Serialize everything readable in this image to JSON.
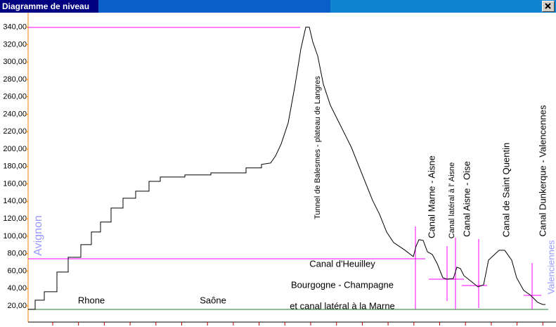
{
  "window": {
    "title": "Diagramme de niveau"
  },
  "chart_data": {
    "type": "line",
    "ylim": [
      1.4,
      355
    ],
    "xlim": [
      0,
      750
    ],
    "yticks": [
      {
        "value": 20,
        "label": "20,00"
      },
      {
        "value": 40,
        "label": "40,00"
      },
      {
        "value": 60,
        "label": "60,00"
      },
      {
        "value": 80,
        "label": "80,00"
      },
      {
        "value": 100,
        "label": "100,00"
      },
      {
        "value": 120,
        "label": "120,00"
      },
      {
        "value": 140,
        "label": "140,00"
      },
      {
        "value": 160,
        "label": "160,00"
      },
      {
        "value": 180,
        "label": "180,00"
      },
      {
        "value": 200,
        "label": "200,00"
      },
      {
        "value": 220,
        "label": "220,00"
      },
      {
        "value": 240,
        "label": "240,00"
      },
      {
        "value": 260,
        "label": "260,00"
      },
      {
        "value": 280,
        "label": "280,00"
      },
      {
        "value": 300,
        "label": "300,00"
      },
      {
        "value": 320,
        "label": "320,00"
      },
      {
        "value": 340,
        "label": "340,00"
      }
    ],
    "x": [
      0,
      10,
      10,
      23,
      23,
      41,
      41,
      57,
      57,
      75,
      75,
      90,
      90,
      103,
      103,
      118,
      118,
      135,
      135,
      153,
      153,
      172,
      172,
      188,
      188,
      223,
      223,
      260,
      260,
      310,
      310,
      332,
      332,
      345,
      352,
      360,
      370,
      380,
      388,
      395,
      400,
      405,
      412,
      420,
      430,
      440,
      450,
      460,
      470,
      480,
      490,
      500,
      510,
      520,
      535,
      548,
      552,
      556,
      562,
      568,
      575,
      582,
      590,
      596,
      605,
      610,
      615,
      620,
      630,
      640,
      648,
      655,
      670,
      678,
      688,
      695,
      705,
      715,
      725,
      732,
      736
    ],
    "series": [
      {
        "color": "#000000",
        "values": [
          16,
          16,
          26.5,
          26.5,
          36.2,
          36.2,
          58.8,
          58.8,
          75.8,
          75.8,
          90.3,
          90.3,
          104.8,
          104.8,
          116.2,
          116.2,
          132.3,
          132.3,
          143.6,
          143.6,
          151.7,
          151.7,
          163,
          163,
          167.9,
          167.9,
          170.3,
          170.3,
          172.7,
          172.7,
          178.4,
          178.4,
          182.4,
          184,
          192.1,
          205.9,
          230.1,
          274.5,
          314.9,
          340,
          340,
          323,
          306.9,
          274.5,
          250.3,
          234.1,
          218,
          201.8,
          181.6,
          161.4,
          141.2,
          125.1,
          104.8,
          92.7,
          84.6,
          76.6,
          88.7,
          96,
          95.2,
          82.2,
          79,
          68.5,
          52.3,
          50.7,
          51.5,
          64.4,
          62.8,
          54.7,
          48.3,
          41.8,
          44.2,
          72.5,
          83.8,
          83.8,
          72.5,
          52.3,
          37.8,
          32.1,
          24,
          21.6,
          21.6
        ]
      }
    ],
    "annotations": [
      "Avignon",
      "Valenciennes",
      "Rhone",
      "Saône",
      "Canal d'Heuilley",
      "Bourgogne - Champagne",
      "et canal latéral à la Marne",
      "Tunnel de Balesmes - plateau de Langres",
      "Canal Marne - Aisne",
      "Canal latéral à l' Aisne",
      "Canal  Aisne - Oise",
      "Canal  de Saint Quentin",
      "Canal  Dunkerque - Valencennes"
    ]
  }
}
